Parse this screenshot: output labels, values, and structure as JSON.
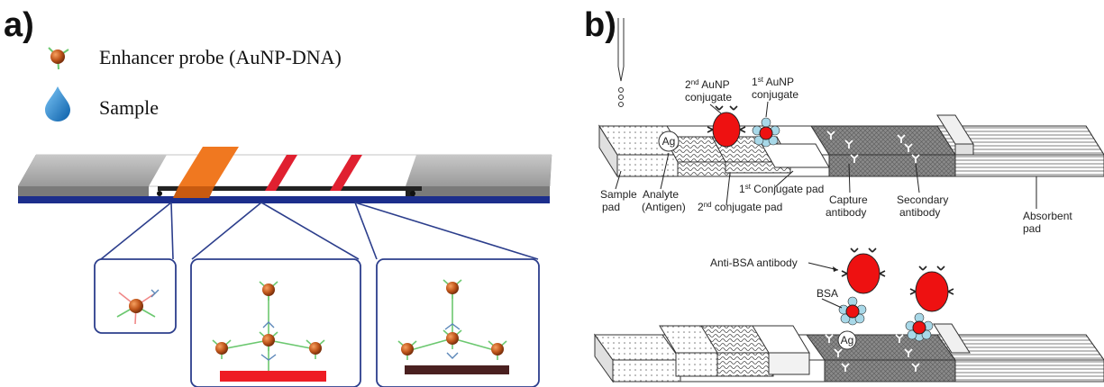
{
  "panel_a": {
    "letter": "a)",
    "legend": [
      {
        "icon": "gold-nanoparticle-icon",
        "label": "Enhancer probe (AuNP-DNA)"
      },
      {
        "icon": "water-drop-icon",
        "label": "Sample"
      }
    ],
    "colors": {
      "strip_top": "#a9a9a9",
      "strip_base": "#1c2e8c",
      "conjugate_pad": "#f07820",
      "test_line": "#e02030",
      "particle": "#c0561b",
      "dna_arm": "#6cc870",
      "antibody": "#5a86b8",
      "inset_border": "#2c3e8c",
      "signal_bar_red": "#ee1c24",
      "signal_bar_dark": "#4a2020"
    }
  },
  "panel_b": {
    "letter": "b)",
    "labels": {
      "second_aunp_conjugate_1": "2",
      "second_aunp_conjugate_sup": "nd",
      "second_aunp_conjugate_2": " AuNP",
      "second_aunp_conjugate_3": "conjugate",
      "first_aunp_conjugate_1": "1",
      "first_aunp_conjugate_sup": "st",
      "first_aunp_conjugate_2": " AuNP",
      "first_aunp_conjugate_3": "conjugate",
      "sample_pad_1": "Sample",
      "sample_pad_2": "pad",
      "analyte_1": "Analyte",
      "analyte_2": "(Antigen)",
      "first_conjugate_pad_num": "1",
      "first_conjugate_pad_sup": "st",
      "first_conjugate_pad_text": " Conjugate pad",
      "second_conjugate_pad_num": "2",
      "second_conjugate_pad_sup": "nd",
      "second_conjugate_pad_text": " conjugate pad",
      "capture_antibody_1": "Capture",
      "capture_antibody_2": "antibody",
      "secondary_antibody_1": "Secondary",
      "secondary_antibody_2": "antibody",
      "absorbent_pad_1": "Absorbent",
      "absorbent_pad_2": "pad",
      "anti_bsa": "Anti-BSA antibody",
      "bsa": "BSA",
      "ag": "Ag"
    },
    "colors": {
      "aunp": "#ee1111",
      "bsa": "#a8d8e8",
      "outline": "#222222"
    }
  }
}
